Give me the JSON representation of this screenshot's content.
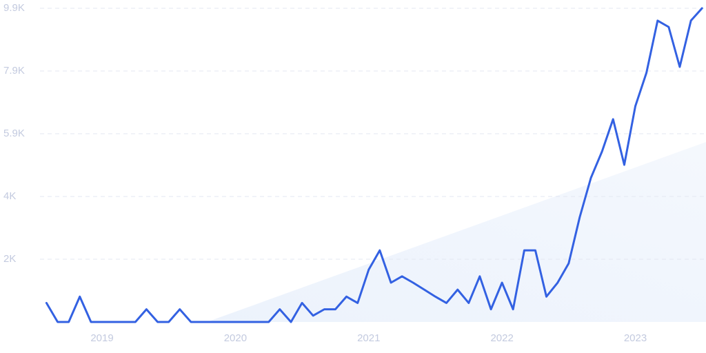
{
  "chart_data": {
    "type": "line",
    "x": [
      2018.583,
      2018.667,
      2018.75,
      2018.833,
      2018.917,
      2019,
      2019.083,
      2019.167,
      2019.25,
      2019.333,
      2019.417,
      2019.5,
      2019.583,
      2019.667,
      2019.75,
      2019.833,
      2019.917,
      2020,
      2020.083,
      2020.167,
      2020.25,
      2020.333,
      2020.417,
      2020.5,
      2020.583,
      2020.667,
      2020.75,
      2020.833,
      2020.917,
      2021,
      2021.083,
      2021.167,
      2021.25,
      2021.333,
      2021.417,
      2021.5,
      2021.583,
      2021.667,
      2021.75,
      2021.833,
      2021.917,
      2022,
      2022.083,
      2022.167,
      2022.25,
      2022.333,
      2022.417,
      2022.5,
      2022.583,
      2022.667,
      2022.75,
      2022.833,
      2022.917,
      2023,
      2023.083,
      2023.167,
      2023.25,
      2023.333,
      2023.417,
      2023.5
    ],
    "values": [
      600,
      0,
      0,
      800,
      0,
      0,
      0,
      0,
      0,
      400,
      0,
      0,
      400,
      0,
      0,
      0,
      0,
      0,
      0,
      0,
      0,
      400,
      0,
      600,
      200,
      400,
      400,
      800,
      600,
      1650,
      2260,
      1240,
      1440,
      1240,
      1020,
      800,
      600,
      1020,
      600,
      1440,
      400,
      1240,
      400,
      2260,
      2260,
      800,
      1240,
      1850,
      3310,
      4550,
      5380,
      6400,
      4960,
      6810,
      7860,
      9510,
      9310,
      8050,
      9510,
      9900
    ],
    "color": "#3361e2",
    "xlim": [
      2018.55,
      2023.53
    ],
    "xticks": [
      2019,
      2020,
      2021,
      2022,
      2023
    ],
    "ylim": [
      0,
      9900
    ],
    "yticks": [
      {
        "value": 1980,
        "label": "2K"
      },
      {
        "value": 3960,
        "label": "4K"
      },
      {
        "value": 5940,
        "label": "5.9K"
      },
      {
        "value": 7920,
        "label": "7.9K"
      },
      {
        "value": 9900,
        "label": "9.9K"
      }
    ],
    "grid": true
  }
}
